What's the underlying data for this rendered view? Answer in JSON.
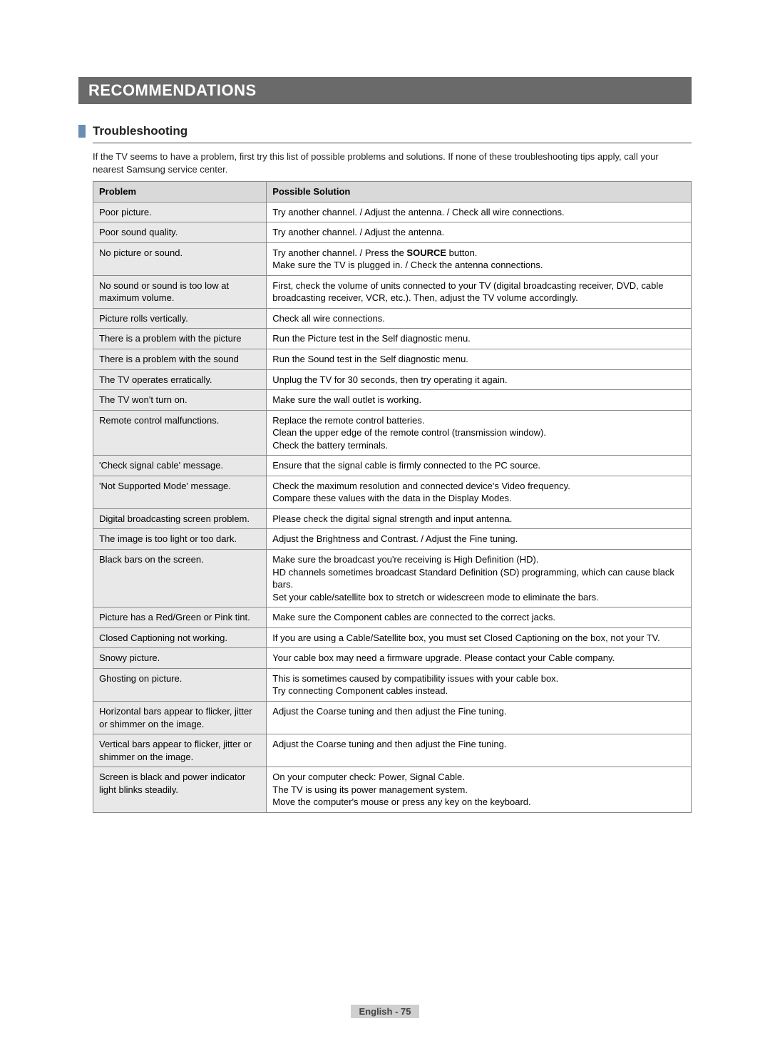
{
  "header": {
    "title": "RECOMMENDATIONS"
  },
  "section": {
    "title": "Troubleshooting",
    "intro": "If the TV seems to have a problem, first try this list of possible problems and solutions. If none of these troubleshooting tips apply, call your nearest Samsung service center."
  },
  "table": {
    "head_problem": "Problem",
    "head_solution": "Possible Solution",
    "rows": [
      {
        "problem": "Poor picture.",
        "solution": [
          "Try another channel. / Adjust the antenna. / Check all wire connections."
        ]
      },
      {
        "problem": "Poor sound quality.",
        "solution": [
          "Try another channel. / Adjust the antenna."
        ]
      },
      {
        "problem": "No picture or sound.",
        "solution_prefix": "Try another channel. / Press the ",
        "solution_bold": "SOURCE",
        "solution_suffix": " button.",
        "solution_extra": [
          "Make sure the TV is plugged in. / Check the antenna connections."
        ]
      },
      {
        "problem": "No sound or sound is too low at maximum volume.",
        "solution": [
          "First, check the volume of units connected to your TV (digital broadcasting receiver, DVD, cable broadcasting receiver, VCR, etc.). Then, adjust the TV volume accordingly."
        ]
      },
      {
        "problem": "Picture rolls vertically.",
        "solution": [
          "Check all wire connections."
        ]
      },
      {
        "problem": "There is a problem with the picture",
        "solution": [
          "Run the Picture test in the Self diagnostic menu."
        ]
      },
      {
        "problem": "There is a problem with the sound",
        "solution": [
          "Run the Sound test in the Self diagnostic menu."
        ]
      },
      {
        "problem": "The TV operates erratically.",
        "solution": [
          "Unplug the TV for 30 seconds, then try operating it again."
        ]
      },
      {
        "problem": "The TV won't turn on.",
        "solution": [
          "Make sure the wall outlet is working."
        ]
      },
      {
        "problem": "Remote control malfunctions.",
        "solution": [
          "Replace the remote control batteries.",
          "Clean the upper edge of the remote control (transmission window).",
          "Check the battery terminals."
        ]
      },
      {
        "problem": "'Check signal cable' message.",
        "solution": [
          "Ensure that the signal cable is firmly connected to the PC source."
        ]
      },
      {
        "problem": "'Not Supported Mode' message.",
        "solution": [
          "Check the maximum resolution and connected device's Video frequency.",
          "Compare these values with the data in the Display Modes."
        ]
      },
      {
        "problem": "Digital broadcasting screen problem.",
        "solution": [
          "Please check the digital signal strength and input antenna."
        ]
      },
      {
        "problem": "The image is too light or too dark.",
        "solution": [
          "Adjust the Brightness and Contrast. / Adjust the Fine tuning."
        ]
      },
      {
        "problem": "Black bars on the screen.",
        "solution": [
          "Make sure the broadcast you're receiving is High Definition (HD).",
          "HD channels sometimes broadcast Standard Definition (SD) programming, which can cause black bars.",
          "Set your cable/satellite box to stretch or widescreen mode to eliminate the bars."
        ]
      },
      {
        "problem": "Picture has a Red/Green or Pink tint.",
        "solution": [
          "Make sure the Component cables are connected to the correct jacks."
        ]
      },
      {
        "problem": "Closed Captioning not working.",
        "solution": [
          "If you are using a Cable/Satellite box, you must set Closed Captioning on the box, not your TV."
        ]
      },
      {
        "problem": "Snowy picture.",
        "solution": [
          "Your cable box may need a firmware upgrade. Please contact your Cable company."
        ]
      },
      {
        "problem": "Ghosting on picture.",
        "solution": [
          "This is sometimes caused by compatibility issues with your cable box.",
          "Try connecting Component cables instead."
        ]
      },
      {
        "problem": "Horizontal bars appear to flicker, jitter or shimmer on the image.",
        "solution": [
          "Adjust the Coarse tuning and then adjust the Fine tuning."
        ]
      },
      {
        "problem": "Vertical bars appear to flicker, jitter or shimmer on the image.",
        "solution": [
          "Adjust the Coarse tuning and then adjust the Fine tuning."
        ]
      },
      {
        "problem": "Screen is black and power indicator light blinks steadily.",
        "solution": [
          "On your computer check: Power, Signal Cable.",
          "The TV is using its power management system.",
          "Move the computer's mouse or press any key on the keyboard."
        ]
      }
    ]
  },
  "footer": {
    "text": "English - 75"
  },
  "colors": {
    "header_bg": "#6a6a6a",
    "marker": "#6b8cb5",
    "th_bg": "#d9d9d9",
    "problem_bg": "#e8e8e8",
    "footer_bg": "#cfcfcf"
  }
}
